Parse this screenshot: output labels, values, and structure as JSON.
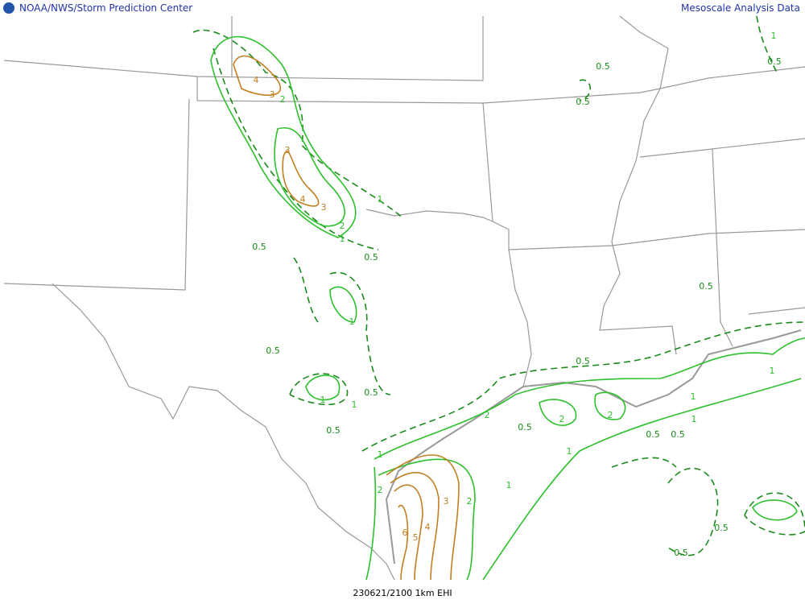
{
  "header": {
    "left": "NOAA/NWS/Storm Prediction Center",
    "right": "Mesoscale Analysis Data"
  },
  "footer": "230621/2100 1km EHI",
  "contour_labels": [
    "4",
    "3",
    "2",
    "3",
    "4",
    "3",
    "2",
    "1",
    "1",
    "0.5",
    "0.5",
    "1",
    "0.5",
    "1",
    "1",
    "0.5",
    "0.5",
    "0.5",
    "0.5",
    "1",
    "0.5",
    "0.5",
    "0.5",
    "1",
    "2",
    "2",
    "2",
    "0.5",
    "1",
    "1",
    "0.5",
    "0.5",
    "1",
    "1",
    "1",
    "2",
    "3",
    "4",
    "5",
    "6",
    "2",
    "0.5",
    "0.5"
  ]
}
